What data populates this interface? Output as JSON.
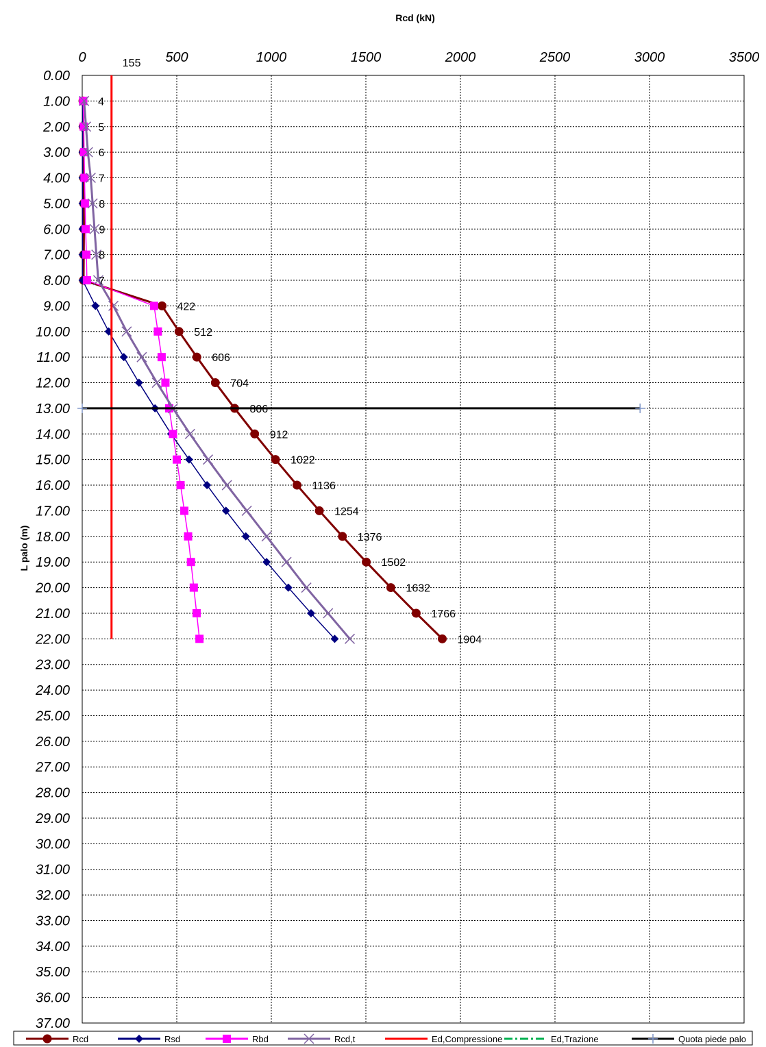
{
  "chart_data": {
    "type": "line",
    "title": "Rcd (kN)",
    "ylabel": "L palo (m)",
    "xlim": [
      0,
      3500
    ],
    "ylim": [
      0,
      37
    ],
    "x_ticks": [
      "0",
      "500",
      "1000",
      "1500",
      "2000",
      "2500",
      "3000",
      "3500"
    ],
    "y_ticks": [
      "0.00",
      "1.00",
      "2.00",
      "3.00",
      "4.00",
      "5.00",
      "6.00",
      "7.00",
      "8.00",
      "9.00",
      "10.00",
      "11.00",
      "12.00",
      "13.00",
      "14.00",
      "15.00",
      "16.00",
      "17.00",
      "18.00",
      "19.00",
      "20.00",
      "21.00",
      "22.00",
      "23.00",
      "24.00",
      "25.00",
      "26.00",
      "27.00",
      "28.00",
      "29.00",
      "30.00",
      "31.00",
      "32.00",
      "33.00",
      "34.00",
      "35.00",
      "36.00",
      "37.00"
    ],
    "grid": true,
    "legend_position": "bottom",
    "series": [
      {
        "name": "Rcd",
        "color": "#800000",
        "marker": "circle",
        "width": 3,
        "points": [
          [
            4,
            1
          ],
          [
            5,
            2
          ],
          [
            6,
            3
          ],
          [
            7,
            4
          ],
          [
            8,
            5
          ],
          [
            9,
            6
          ],
          [
            8,
            7
          ],
          [
            7,
            8
          ],
          [
            422,
            9
          ],
          [
            512,
            10
          ],
          [
            606,
            11
          ],
          [
            704,
            12
          ],
          [
            806,
            13
          ],
          [
            912,
            14
          ],
          [
            1022,
            15
          ],
          [
            1136,
            16
          ],
          [
            1254,
            17
          ],
          [
            1376,
            18
          ],
          [
            1502,
            19
          ],
          [
            1632,
            20
          ],
          [
            1766,
            21
          ],
          [
            1904,
            22
          ]
        ]
      },
      {
        "name": "Rsd",
        "color": "#000080",
        "marker": "diamond",
        "width": 1.5,
        "points": [
          [
            2,
            1
          ],
          [
            2,
            2
          ],
          [
            2,
            3
          ],
          [
            2,
            4
          ],
          [
            2,
            5
          ],
          [
            2,
            6
          ],
          [
            2,
            7
          ],
          [
            2,
            8
          ],
          [
            70,
            9
          ],
          [
            140,
            10
          ],
          [
            220,
            11
          ],
          [
            300,
            12
          ],
          [
            385,
            13
          ],
          [
            470,
            14
          ],
          [
            565,
            15
          ],
          [
            660,
            16
          ],
          [
            760,
            17
          ],
          [
            865,
            18
          ],
          [
            975,
            19
          ],
          [
            1090,
            20
          ],
          [
            1210,
            21
          ],
          [
            1335,
            22
          ]
        ]
      },
      {
        "name": "Rbd",
        "color": "#FF00FF",
        "marker": "square",
        "width": 1.5,
        "points": [
          [
            5,
            1
          ],
          [
            8,
            2
          ],
          [
            10,
            3
          ],
          [
            12,
            4
          ],
          [
            15,
            5
          ],
          [
            18,
            6
          ],
          [
            22,
            7
          ],
          [
            25,
            8
          ],
          [
            380,
            9
          ],
          [
            400,
            10
          ],
          [
            420,
            11
          ],
          [
            440,
            12
          ],
          [
            460,
            13
          ],
          [
            480,
            14
          ],
          [
            500,
            15
          ],
          [
            520,
            16
          ],
          [
            540,
            17
          ],
          [
            560,
            18
          ],
          [
            575,
            19
          ],
          [
            590,
            20
          ],
          [
            605,
            21
          ],
          [
            620,
            22
          ]
        ]
      },
      {
        "name": "Rcd,t",
        "color": "#8064A2",
        "marker": "x",
        "width": 3,
        "points": [
          [
            10,
            1
          ],
          [
            20,
            2
          ],
          [
            30,
            3
          ],
          [
            45,
            4
          ],
          [
            55,
            5
          ],
          [
            65,
            6
          ],
          [
            75,
            7
          ],
          [
            85,
            8
          ],
          [
            165,
            9
          ],
          [
            235,
            10
          ],
          [
            315,
            11
          ],
          [
            395,
            12
          ],
          [
            480,
            13
          ],
          [
            570,
            14
          ],
          [
            665,
            15
          ],
          [
            765,
            16
          ],
          [
            870,
            17
          ],
          [
            975,
            18
          ],
          [
            1080,
            19
          ],
          [
            1185,
            20
          ],
          [
            1300,
            21
          ],
          [
            1415,
            22
          ]
        ]
      },
      {
        "name": "Ed,Compressione",
        "color": "#FF0000",
        "marker": "none",
        "width": 3,
        "points": [
          [
            155,
            0
          ],
          [
            155,
            22
          ]
        ]
      },
      {
        "name": "Ed,Trazione",
        "color": "#00B050",
        "marker": "none",
        "width": 3,
        "dash": "12,4,3,4",
        "points": []
      },
      {
        "name": "Quota piede palo",
        "color": "#000000",
        "marker": "plus",
        "width": 3,
        "points": [
          [
            0,
            13
          ],
          [
            2950,
            13
          ]
        ]
      }
    ],
    "annotations": [
      {
        "text": "4",
        "x": 4,
        "y": 1
      },
      {
        "text": "5",
        "x": 5,
        "y": 2
      },
      {
        "text": "6",
        "x": 6,
        "y": 3
      },
      {
        "text": "7",
        "x": 7,
        "y": 4
      },
      {
        "text": "8",
        "x": 8,
        "y": 5
      },
      {
        "text": "9",
        "x": 9,
        "y": 6
      },
      {
        "text": "8",
        "x": 8,
        "y": 7
      },
      {
        "text": "7",
        "x": 7,
        "y": 8
      },
      {
        "text": "422",
        "x": 422,
        "y": 9
      },
      {
        "text": "512",
        "x": 512,
        "y": 10
      },
      {
        "text": "606",
        "x": 606,
        "y": 11
      },
      {
        "text": "704",
        "x": 704,
        "y": 12
      },
      {
        "text": "806",
        "x": 806,
        "y": 13
      },
      {
        "text": "912",
        "x": 912,
        "y": 14
      },
      {
        "text": "1022",
        "x": 1022,
        "y": 15
      },
      {
        "text": "1136",
        "x": 1136,
        "y": 16
      },
      {
        "text": "1254",
        "x": 1254,
        "y": 17
      },
      {
        "text": "1376",
        "x": 1376,
        "y": 18
      },
      {
        "text": "1502",
        "x": 1502,
        "y": 19
      },
      {
        "text": "1632",
        "x": 1632,
        "y": 20
      },
      {
        "text": "1766",
        "x": 1766,
        "y": 21
      },
      {
        "text": "1904",
        "x": 1904,
        "y": 22
      },
      {
        "text": "155",
        "x": 155,
        "y": 0
      }
    ]
  }
}
